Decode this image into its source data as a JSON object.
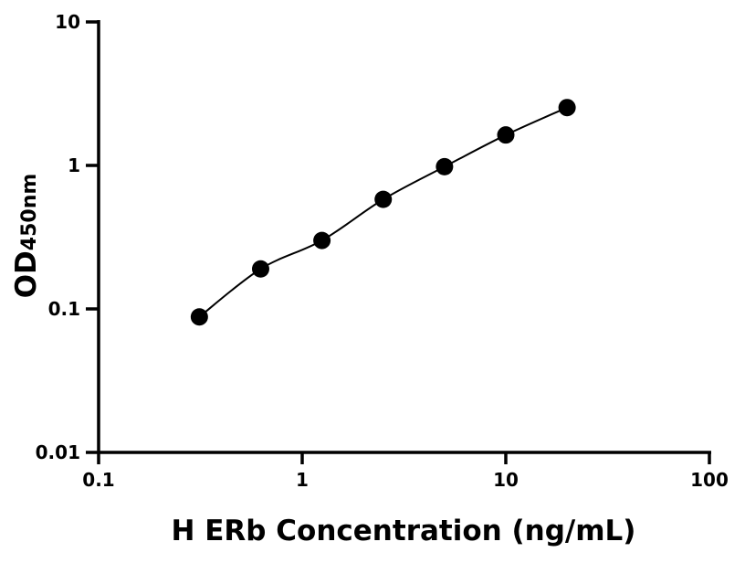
{
  "chart_data": {
    "type": "scatter",
    "title": "",
    "xlabel": "H ERb Concentration (ng/mL)",
    "ylabel_main": "OD",
    "ylabel_sub": "450nm",
    "x_scale": "log",
    "y_scale": "log",
    "xlim": [
      0.1,
      100
    ],
    "ylim": [
      0.01,
      10
    ],
    "x_ticks": [
      0.1,
      1,
      10,
      100
    ],
    "x_tick_labels": [
      "0.1",
      "1",
      "10",
      "100"
    ],
    "y_ticks": [
      0.01,
      0.1,
      1,
      10
    ],
    "y_tick_labels": [
      "0.01",
      "0.1",
      "1",
      "10"
    ],
    "grid": false,
    "legend": "none",
    "color": "#000000",
    "fit_line": true,
    "x": [
      0.3125,
      0.625,
      1.25,
      2.5,
      5,
      10,
      20
    ],
    "y": [
      0.088,
      0.19,
      0.3,
      0.58,
      0.98,
      1.63,
      2.53
    ]
  }
}
